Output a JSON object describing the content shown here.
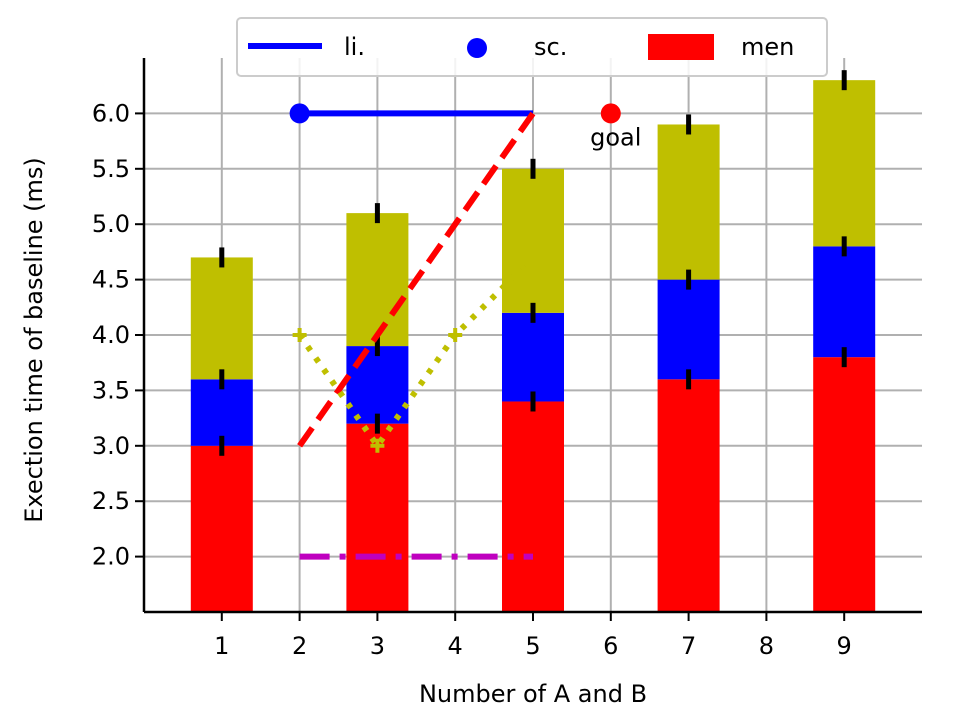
{
  "chart_data": {
    "type": "bar",
    "xlabel": "Number of A and B",
    "ylabel": "Exection time of baseline (ms)",
    "xlim": [
      0,
      10
    ],
    "ylim": [
      1.5,
      6.5
    ],
    "xticks": [
      1,
      2,
      3,
      4,
      5,
      6,
      7,
      8,
      9
    ],
    "yticks": [
      2.0,
      2.5,
      3.0,
      3.5,
      4.0,
      4.5,
      5.0,
      5.5,
      6.0
    ],
    "grid": true,
    "legend_placement": "top",
    "categories": [
      1,
      3,
      5,
      7,
      9
    ],
    "bar_base": 0,
    "stacks": [
      {
        "name": "men",
        "color": "#ff0000",
        "values": [
          3.0,
          3.2,
          3.4,
          3.6,
          3.8
        ]
      },
      {
        "name": "",
        "color": "#0000ff",
        "values": [
          0.6,
          0.7,
          0.8,
          0.9,
          1.0
        ]
      },
      {
        "name": "",
        "color": "#bfbf00",
        "values": [
          1.1,
          1.2,
          1.3,
          1.4,
          1.5
        ]
      }
    ],
    "lines": [
      {
        "name": "li.",
        "color": "#0000ff",
        "style": "solid",
        "x": [
          2,
          5
        ],
        "y": [
          6.0,
          6.0
        ]
      },
      {
        "name": "",
        "color": "#ff0000",
        "style": "dashed",
        "x": [
          2,
          5
        ],
        "y": [
          3.0,
          6.0
        ]
      },
      {
        "name": "",
        "color": "#bfbf00",
        "style": "dotted",
        "marker": "plus",
        "x": [
          2,
          3,
          4,
          5
        ],
        "y": [
          4.0,
          3.0,
          4.0,
          4.7
        ]
      },
      {
        "name": "",
        "color": "#bf00bf",
        "style": "dashdot",
        "x": [
          2,
          5
        ],
        "y": [
          2.0,
          2.0
        ]
      }
    ],
    "scatter": [
      {
        "name": "sc.",
        "color": "#0000ff",
        "x": [
          2
        ],
        "y": [
          6.0
        ]
      },
      {
        "name": "",
        "color": "#ff0000",
        "x": [
          6
        ],
        "y": [
          6.0
        ]
      }
    ],
    "annotations": [
      {
        "text": "goal",
        "x": 6,
        "y": 6.0
      }
    ],
    "legend": [
      {
        "label": "li.",
        "kind": "line",
        "color": "#0000ff"
      },
      {
        "label": "sc.",
        "kind": "marker",
        "color": "#0000ff"
      },
      {
        "label": "men",
        "kind": "patch",
        "color": "#ff0000"
      }
    ]
  }
}
